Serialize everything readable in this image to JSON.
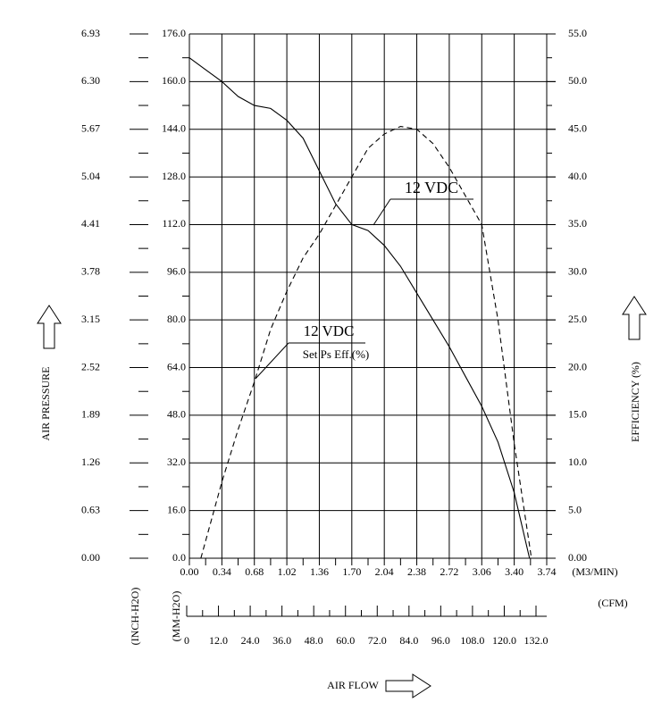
{
  "chart_data": {
    "type": "line",
    "xlim": [
      0,
      3.74
    ],
    "xticks": [
      {
        "value": 0,
        "label": "0.00"
      },
      0.34,
      0.68,
      1.02,
      1.36,
      {
        "value": 1.7,
        "label": "1.70"
      },
      2.04,
      2.38,
      2.72,
      3.06,
      {
        "value": 3.4,
        "label": "3.40"
      },
      3.74
    ],
    "x_unit": "(M3/MIN)",
    "ylim": [
      0,
      176
    ],
    "yticks": [
      {
        "value": 0,
        "label": "0.0"
      },
      {
        "value": 16,
        "label": "16.0"
      },
      {
        "value": 32,
        "label": "32.0"
      },
      {
        "value": 48,
        "label": "48.0"
      },
      {
        "value": 64,
        "label": "64.0"
      },
      {
        "value": 80,
        "label": "80.0"
      },
      {
        "value": 96,
        "label": "96.0"
      },
      {
        "value": 112,
        "label": "112.0"
      },
      {
        "value": 128,
        "label": "128.0"
      },
      {
        "value": 144,
        "label": "144.0"
      },
      {
        "value": 160,
        "label": "160.0"
      },
      {
        "value": 176,
        "label": "176.0"
      }
    ],
    "y_unit": "(MM-H2O)",
    "inch_lim": [
      0,
      6.93
    ],
    "inch_ticks": [
      {
        "value": 0,
        "label": "0.00"
      },
      0.63,
      1.26,
      1.89,
      2.52,
      3.15,
      3.78,
      4.41,
      5.04,
      5.67,
      {
        "value": 6.3,
        "label": "6.30"
      },
      6.93
    ],
    "inch_unit": "(INCH-H2O)",
    "y_label": "AIR PRESSURE",
    "y2lim": [
      0,
      55
    ],
    "y2ticks": [
      {
        "value": 0,
        "label": "0.00"
      },
      {
        "value": 5,
        "label": "5.0"
      },
      {
        "value": 10,
        "label": "10.0"
      },
      {
        "value": 15,
        "label": "15.0"
      },
      {
        "value": 20,
        "label": "20.0"
      },
      {
        "value": 25,
        "label": "25.0"
      },
      {
        "value": 30,
        "label": "30.0"
      },
      {
        "value": 35,
        "label": "35.0"
      },
      {
        "value": 40,
        "label": "40.0"
      },
      {
        "value": 45,
        "label": "45.0"
      },
      {
        "value": 50,
        "label": "50.0"
      },
      {
        "value": 55,
        "label": "55.0"
      }
    ],
    "y2_label": "EFFICIENCY (%)",
    "cfm_lim": [
      0,
      132
    ],
    "cfm_ticks": [
      0,
      {
        "value": 12,
        "label": "12.0"
      },
      {
        "value": 24,
        "label": "24.0"
      },
      {
        "value": 36,
        "label": "36.0"
      },
      {
        "value": 48,
        "label": "48.0"
      },
      {
        "value": 60,
        "label": "60.0"
      },
      {
        "value": 72,
        "label": "72.0"
      },
      {
        "value": 84,
        "label": "84.0"
      },
      {
        "value": 96,
        "label": "96.0"
      },
      {
        "value": 108,
        "label": "108.0"
      },
      {
        "value": 120,
        "label": "120.0"
      },
      {
        "value": 132,
        "label": "132.0"
      }
    ],
    "cfm_unit": "(CFM)",
    "x_label": "AIR FLOW",
    "grid": true,
    "series": [
      {
        "color": "#000000",
        "dash": false,
        "x": [
          0,
          0.17,
          0.34,
          0.51,
          0.68,
          0.85,
          1.02,
          1.19,
          1.36,
          1.53,
          1.7,
          1.87,
          2.04,
          2.21,
          2.38,
          2.55,
          2.72,
          2.89,
          3.06,
          3.23,
          3.4,
          3.56
        ],
        "values": [
          168,
          164,
          160,
          155,
          152,
          151,
          147,
          141,
          130,
          119,
          112,
          110,
          105,
          98,
          89,
          80,
          71,
          61,
          51,
          39,
          22,
          0
        ]
      },
      {
        "color": "#000000",
        "dash": true,
        "axis": "y2",
        "x": [
          0.12,
          0.34,
          0.51,
          0.68,
          0.85,
          1.02,
          1.19,
          1.36,
          1.53,
          1.7,
          1.87,
          2.04,
          2.21,
          2.38,
          2.55,
          2.72,
          2.89,
          3.06,
          3.23,
          3.4,
          3.52,
          3.58
        ],
        "values": [
          0,
          8,
          13.5,
          18.5,
          24,
          28,
          31.5,
          34,
          37,
          40,
          43,
          44.5,
          45.3,
          45,
          43.5,
          41,
          38,
          35,
          25,
          12,
          4,
          0
        ]
      }
    ],
    "annotations": [
      "12 VDC",
      "12 VDC",
      "Set Ps Eff.(%)"
    ]
  }
}
